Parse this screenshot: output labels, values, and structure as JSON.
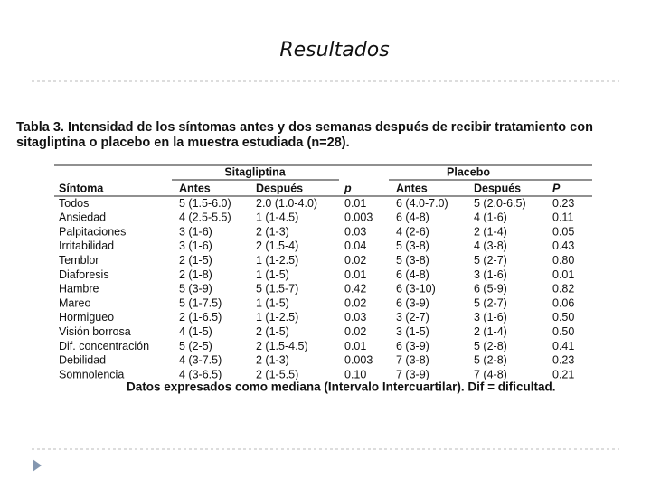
{
  "slide": {
    "title": "Resultados",
    "caption": [
      "Tabla 3. Intensidad de los síntomas antes y dos semanas después de recibir tratamiento con",
      "sitagliptina o placebo en la muestra estudiada (n=28)."
    ],
    "table": {
      "groups": [
        "Sitagliptina",
        "Placebo"
      ],
      "columns": [
        "Síntoma",
        "Antes",
        "Después",
        "p",
        "Antes",
        "Después",
        "P"
      ],
      "rows": [
        [
          "Todos",
          "5 (1.5-6.0)",
          "2.0 (1.0-4.0)",
          "0.01",
          "6 (4.0-7.0)",
          "5 (2.0-6.5)",
          "0.23"
        ],
        [
          "Ansiedad",
          "4 (2.5-5.5)",
          "1 (1-4.5)",
          "0.003",
          "6 (4-8)",
          "4 (1-6)",
          "0.11"
        ],
        [
          "Palpitaciones",
          "3 (1-6)",
          "2 (1-3)",
          "0.03",
          "4 (2-6)",
          "2 (1-4)",
          "0.05"
        ],
        [
          "Irritabilidad",
          "3 (1-6)",
          "2 (1.5-4)",
          "0.04",
          "5 (3-8)",
          "4 (3-8)",
          "0.43"
        ],
        [
          "Temblor",
          "2 (1-5)",
          "1 (1-2.5)",
          "0.02",
          "5 (3-8)",
          "5 (2-7)",
          "0.80"
        ],
        [
          "Diaforesis",
          "2 (1-8)",
          "1 (1-5)",
          "0.01",
          "6 (4-8)",
          "3 (1-6)",
          "0.01"
        ],
        [
          "Hambre",
          "5 (3-9)",
          "5 (1.5-7)",
          "0.42",
          "6 (3-10)",
          "6 (5-9)",
          "0.82"
        ],
        [
          "Mareo",
          "5 (1-7.5)",
          "1 (1-5)",
          "0.02",
          "6 (3-9)",
          "5 (2-7)",
          "0.06"
        ],
        [
          "Hormigueo",
          "2 (1-6.5)",
          "1 (1-2.5)",
          "0.03",
          "3 (2-7)",
          "3 (1-6)",
          "0.50"
        ],
        [
          "Visión borrosa",
          "4 (1-5)",
          "2 (1-5)",
          "0.02",
          "3 (1-5)",
          "2 (1-4)",
          "0.50"
        ],
        [
          "Dif. concentración",
          "5 (2-5)",
          "2 (1.5-4.5)",
          "0.01",
          "6 (3-9)",
          "5 (2-8)",
          "0.41"
        ],
        [
          "Debilidad",
          "4 (3-7.5)",
          "2 (1-3)",
          "0.003",
          "7 (3-8)",
          "5 (2-8)",
          "0.23"
        ],
        [
          "Somnolencia",
          "4 (3-6.5)",
          "2 (1-5.5)",
          "0.10",
          "7 (3-9)",
          "7 (4-8)",
          "0.21"
        ]
      ],
      "footnote": "Datos expresados como mediana (Intervalo Intercuartilar). Dif = dificultad."
    }
  }
}
